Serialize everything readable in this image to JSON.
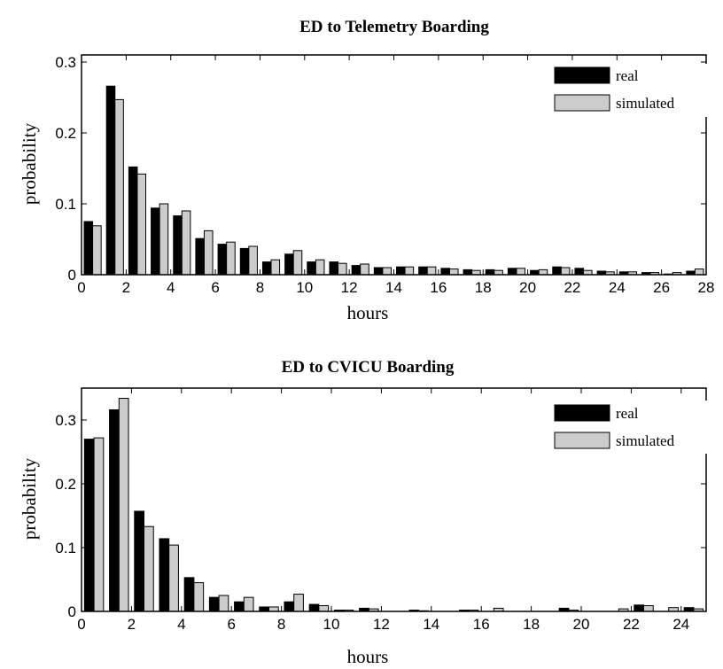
{
  "colors": {
    "real": "#000000",
    "simulated": "#cccccc",
    "background": "#ffffff"
  },
  "chart_data": [
    {
      "type": "bar",
      "title": "ED to Telemetry Boarding",
      "xlabel": "hours",
      "ylabel": "probability",
      "xlim": [
        0,
        28
      ],
      "ylim": [
        0,
        0.31
      ],
      "xticks": [
        0,
        2,
        4,
        6,
        8,
        10,
        12,
        14,
        16,
        18,
        20,
        22,
        24,
        26,
        28
      ],
      "xticklabels": [
        "0",
        "2",
        "4",
        "6",
        "8",
        "10",
        "12",
        "14",
        "16",
        "18",
        "20",
        "22",
        "24",
        "26",
        "28"
      ],
      "yticks": [
        0,
        0.1,
        0.2,
        0.3
      ],
      "yticklabels": [
        "0",
        "0.1",
        "0.2",
        "0.3"
      ],
      "grid": false,
      "legend_position": "top-right",
      "bin_width": 1,
      "x": [
        0.5,
        1.5,
        2.5,
        3.5,
        4.5,
        5.5,
        6.5,
        7.5,
        8.5,
        9.5,
        10.5,
        11.5,
        12.5,
        13.5,
        14.5,
        15.5,
        16.5,
        17.5,
        18.5,
        19.5,
        20.5,
        21.5,
        22.5,
        23.5,
        24.5,
        25.5,
        26.5,
        27.5
      ],
      "series": [
        {
          "name": "real",
          "values": [
            0.075,
            0.266,
            0.152,
            0.094,
            0.083,
            0.051,
            0.043,
            0.037,
            0.018,
            0.029,
            0.018,
            0.018,
            0.013,
            0.01,
            0.011,
            0.011,
            0.009,
            0.007,
            0.007,
            0.009,
            0.006,
            0.011,
            0.009,
            0.005,
            0.004,
            0.003,
            0.001,
            0.005
          ]
        },
        {
          "name": "simulated",
          "values": [
            0.069,
            0.247,
            0.142,
            0.1,
            0.09,
            0.062,
            0.046,
            0.04,
            0.021,
            0.034,
            0.021,
            0.016,
            0.015,
            0.01,
            0.011,
            0.011,
            0.008,
            0.006,
            0.006,
            0.009,
            0.007,
            0.01,
            0.006,
            0.004,
            0.004,
            0.003,
            0.003,
            0.008
          ]
        }
      ]
    },
    {
      "type": "bar",
      "title": "ED to CVICU Boarding",
      "xlabel": "hours",
      "ylabel": "probability",
      "xlim": [
        0,
        25
      ],
      "ylim": [
        0,
        0.35
      ],
      "xticks": [
        0,
        2,
        4,
        6,
        8,
        10,
        12,
        14,
        16,
        18,
        20,
        22,
        24
      ],
      "xticklabels": [
        "0",
        "2",
        "4",
        "6",
        "8",
        "10",
        "12",
        "14",
        "16",
        "18",
        "20",
        "22",
        "24"
      ],
      "yticks": [
        0,
        0.1,
        0.2,
        0.3
      ],
      "yticklabels": [
        "0",
        "0.1",
        "0.2",
        "0.3"
      ],
      "grid": false,
      "legend_position": "top-right",
      "bin_width": 1,
      "x": [
        0.5,
        1.5,
        2.5,
        3.5,
        4.5,
        5.5,
        6.5,
        7.5,
        8.5,
        9.5,
        10.5,
        11.5,
        12.5,
        13.5,
        14.5,
        15.5,
        16.5,
        17.5,
        18.5,
        19.5,
        20.5,
        21.5,
        22.5,
        23.5,
        24.5
      ],
      "series": [
        {
          "name": "real",
          "values": [
            0.27,
            0.316,
            0.157,
            0.114,
            0.053,
            0.022,
            0.015,
            0.007,
            0.015,
            0.011,
            0.002,
            0.005,
            0,
            0.002,
            0,
            0.002,
            0,
            0,
            0,
            0.005,
            0,
            0,
            0.01,
            0,
            0.006
          ]
        },
        {
          "name": "simulated",
          "values": [
            0.272,
            0.334,
            0.133,
            0.104,
            0.045,
            0.025,
            0.022,
            0.007,
            0.027,
            0.009,
            0.002,
            0.004,
            0,
            0.001,
            0,
            0.002,
            0.005,
            0,
            0,
            0.002,
            0,
            0.004,
            0.009,
            0.006,
            0.004
          ]
        }
      ]
    }
  ]
}
